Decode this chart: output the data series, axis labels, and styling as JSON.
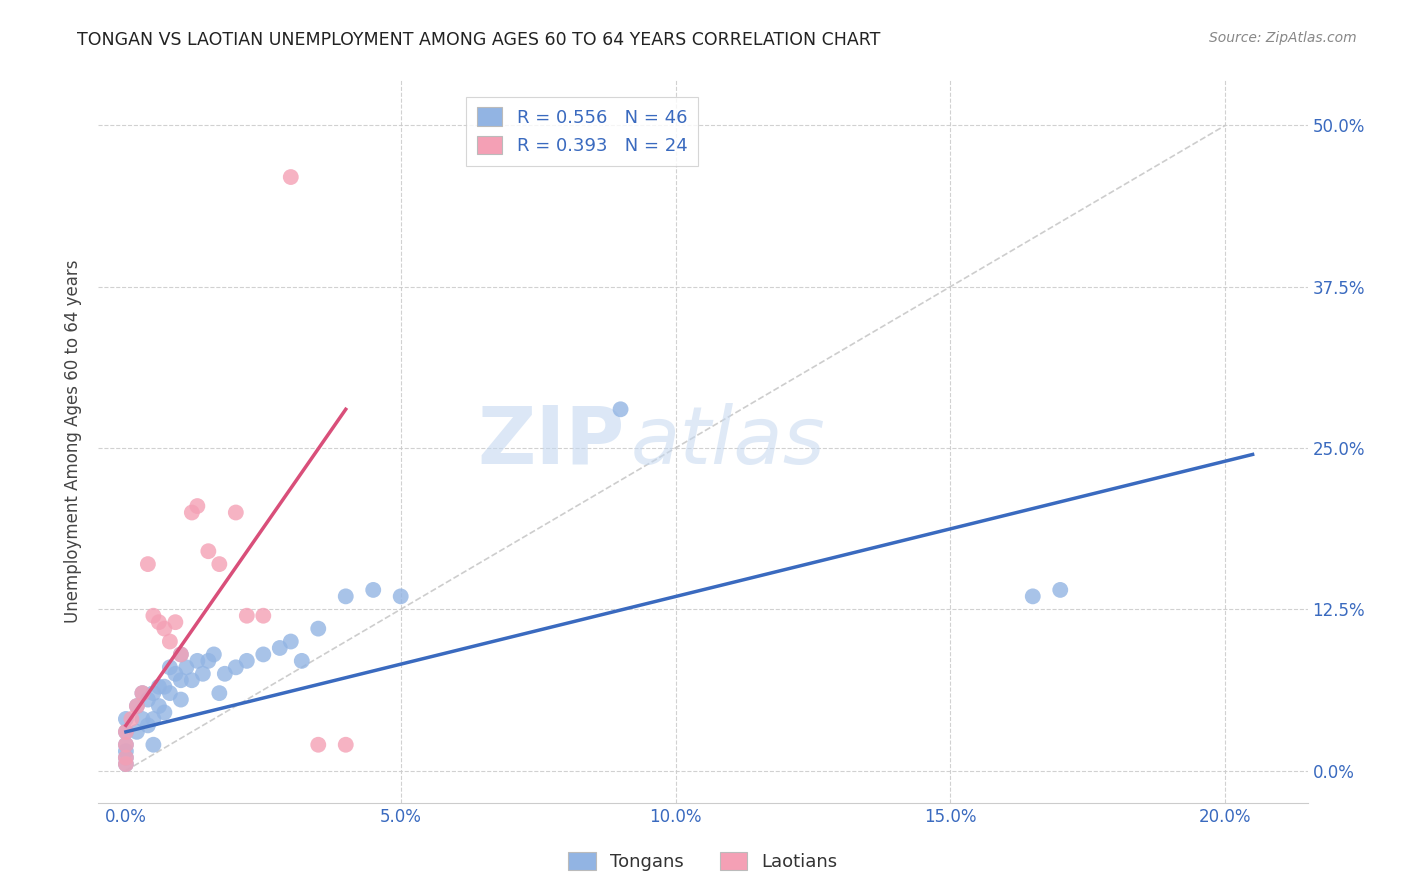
{
  "title": "TONGAN VS LAOTIAN UNEMPLOYMENT AMONG AGES 60 TO 64 YEARS CORRELATION CHART",
  "source": "Source: ZipAtlas.com",
  "xlabel_ticks": [
    "0.0%",
    "5.0%",
    "10.0%",
    "15.0%",
    "20.0%"
  ],
  "ylabel_ticks": [
    "0.0%",
    "12.5%",
    "25.0%",
    "37.5%",
    "50.0%"
  ],
  "xlabel_tick_vals": [
    0.0,
    0.05,
    0.1,
    0.15,
    0.2
  ],
  "ylabel_tick_vals": [
    0.0,
    0.125,
    0.25,
    0.375,
    0.5
  ],
  "xlim": [
    -0.005,
    0.215
  ],
  "ylim": [
    -0.025,
    0.535
  ],
  "ylabel": "Unemployment Among Ages 60 to 64 years",
  "blue_R": 0.556,
  "blue_N": 46,
  "pink_R": 0.393,
  "pink_N": 24,
  "blue_color": "#92b4e3",
  "pink_color": "#f4a0b5",
  "blue_line_color": "#3a6abf",
  "pink_line_color": "#d94f7a",
  "diagonal_color": "#c8c8c8",
  "watermark_zip": "ZIP",
  "watermark_atlas": "atlas",
  "legend_label_blue": "Tongans",
  "legend_label_pink": "Laotians",
  "tongan_x": [
    0.0,
    0.0,
    0.0,
    0.0,
    0.0,
    0.0,
    0.002,
    0.002,
    0.003,
    0.003,
    0.004,
    0.004,
    0.005,
    0.005,
    0.005,
    0.006,
    0.006,
    0.007,
    0.007,
    0.008,
    0.008,
    0.009,
    0.01,
    0.01,
    0.01,
    0.011,
    0.012,
    0.013,
    0.014,
    0.015,
    0.016,
    0.017,
    0.018,
    0.02,
    0.022,
    0.025,
    0.028,
    0.03,
    0.032,
    0.035,
    0.04,
    0.045,
    0.05,
    0.09,
    0.165,
    0.17
  ],
  "tongan_y": [
    0.005,
    0.01,
    0.015,
    0.02,
    0.03,
    0.04,
    0.03,
    0.05,
    0.04,
    0.06,
    0.035,
    0.055,
    0.02,
    0.04,
    0.06,
    0.05,
    0.065,
    0.045,
    0.065,
    0.06,
    0.08,
    0.075,
    0.055,
    0.07,
    0.09,
    0.08,
    0.07,
    0.085,
    0.075,
    0.085,
    0.09,
    0.06,
    0.075,
    0.08,
    0.085,
    0.09,
    0.095,
    0.1,
    0.085,
    0.11,
    0.135,
    0.14,
    0.135,
    0.28,
    0.135,
    0.14
  ],
  "laotian_x": [
    0.0,
    0.0,
    0.0,
    0.0,
    0.001,
    0.002,
    0.003,
    0.004,
    0.005,
    0.006,
    0.007,
    0.008,
    0.009,
    0.01,
    0.012,
    0.013,
    0.015,
    0.017,
    0.02,
    0.022,
    0.025,
    0.03,
    0.035,
    0.04
  ],
  "laotian_y": [
    0.005,
    0.01,
    0.02,
    0.03,
    0.04,
    0.05,
    0.06,
    0.16,
    0.12,
    0.115,
    0.11,
    0.1,
    0.115,
    0.09,
    0.2,
    0.205,
    0.17,
    0.16,
    0.2,
    0.12,
    0.12,
    0.46,
    0.02,
    0.02
  ],
  "blue_line_x": [
    0.0,
    0.205
  ],
  "blue_line_y": [
    0.03,
    0.245
  ],
  "pink_line_x": [
    0.0,
    0.04
  ],
  "pink_line_y": [
    0.035,
    0.28
  ]
}
